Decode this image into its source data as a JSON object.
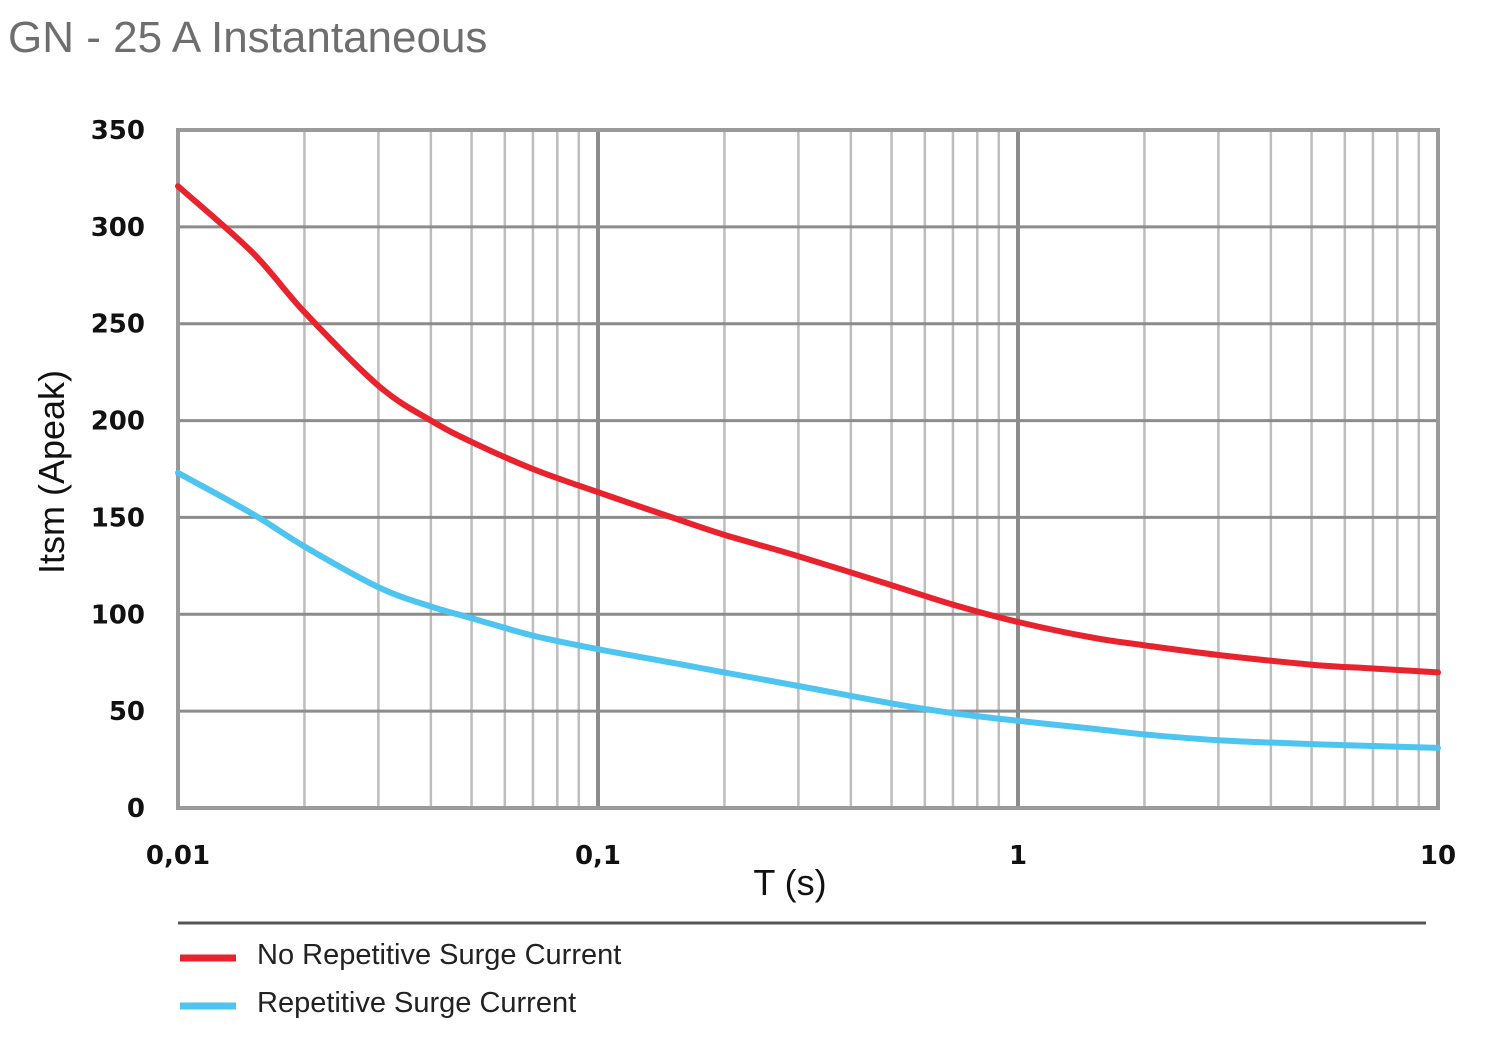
{
  "title": "GN - 25 A Instantaneous",
  "chart_data": {
    "type": "line",
    "title": "GN - 25 A Instantaneous",
    "xlabel": "T (s)",
    "ylabel": "Itsm (Apeak)",
    "x_scale": "log",
    "xlim": [
      0.01,
      10
    ],
    "ylim": [
      0,
      350
    ],
    "grid": true,
    "x_ticks": [
      {
        "value": 0.01,
        "label": "0,01"
      },
      {
        "value": 0.1,
        "label": "0,1"
      },
      {
        "value": 1,
        "label": "1"
      },
      {
        "value": 10,
        "label": "10"
      }
    ],
    "y_ticks": [
      {
        "value": 0,
        "label": "0"
      },
      {
        "value": 50,
        "label": "50"
      },
      {
        "value": 100,
        "label": "100"
      },
      {
        "value": 150,
        "label": "150"
      },
      {
        "value": 200,
        "label": "200"
      },
      {
        "value": 250,
        "label": "250"
      },
      {
        "value": 300,
        "label": "300"
      },
      {
        "value": 350,
        "label": "350"
      }
    ],
    "legend_position": "bottom-left",
    "series": [
      {
        "name": "No Repetitive Surge Current",
        "color": "#e8232d",
        "x": [
          0.01,
          0.015,
          0.02,
          0.03,
          0.04,
          0.05,
          0.07,
          0.1,
          0.15,
          0.2,
          0.3,
          0.5,
          0.7,
          1,
          1.5,
          2,
          3,
          5,
          7,
          10
        ],
        "y": [
          321,
          287,
          256,
          218,
          200,
          189,
          175,
          163,
          150,
          141,
          130,
          115,
          105,
          96,
          88,
          84,
          79,
          74,
          72,
          70
        ]
      },
      {
        "name": "Repetitive Surge Current",
        "color": "#4ec4f0",
        "x": [
          0.01,
          0.015,
          0.02,
          0.03,
          0.04,
          0.05,
          0.07,
          0.1,
          0.15,
          0.2,
          0.3,
          0.5,
          0.7,
          1,
          1.5,
          2,
          3,
          5,
          7,
          10
        ],
        "y": [
          173,
          152,
          135,
          114,
          104,
          98,
          89,
          82,
          75,
          70,
          63,
          54,
          49,
          45,
          41,
          38,
          35,
          33,
          32,
          31
        ]
      }
    ]
  }
}
